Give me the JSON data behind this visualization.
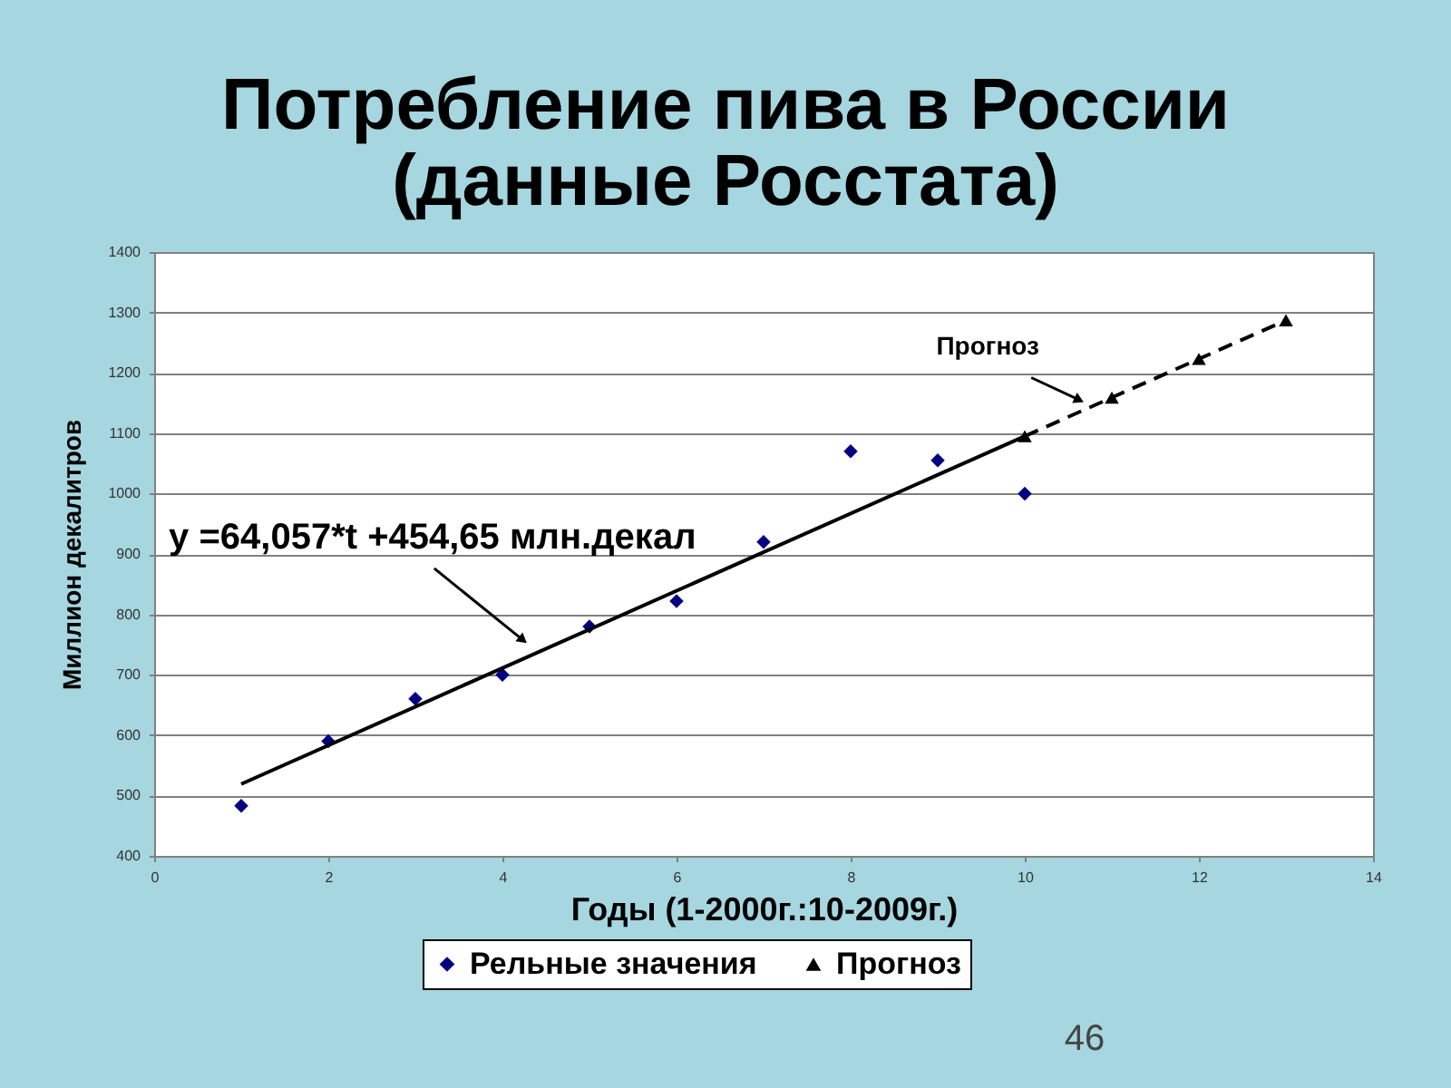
{
  "chart_data": {
    "type": "scatter",
    "title": "Потребление пива в России",
    "subtitle": "(данные Росстата)",
    "xlabel": "Годы (1-2000г.:10-2009г.)",
    "ylabel": "Миллион декалитров",
    "xlim": [
      0,
      14
    ],
    "xticks": [
      0,
      2,
      4,
      6,
      8,
      10,
      12,
      14
    ],
    "ylim": [
      400,
      1400
    ],
    "yticks": [
      400,
      500,
      600,
      700,
      800,
      900,
      1000,
      1100,
      1200,
      1300,
      1400
    ],
    "grid": "y",
    "legend": "bottom",
    "series": [
      {
        "name": "Рельные значения",
        "marker": "diamond",
        "color": "#000080",
        "x": [
          1,
          2,
          3,
          4,
          5,
          6,
          7,
          8,
          9,
          10
        ],
        "values": [
          483,
          590,
          660,
          700,
          780,
          822,
          920,
          1070,
          1055,
          1000
        ]
      },
      {
        "type": "line",
        "color": "#000000",
        "line_style": "solid",
        "x": [
          1,
          10
        ],
        "values": [
          519,
          1095
        ]
      },
      {
        "name": "Прогноз",
        "type": "line",
        "color": "#000000",
        "line_style": "dashed",
        "marker": "triangle",
        "x": [
          10,
          11,
          12,
          13
        ],
        "values": [
          1095,
          1159,
          1223,
          1287
        ]
      }
    ],
    "annotations": [
      {
        "text": "y =64,057*t +454,65 млн.декал",
        "x": 4.3,
        "y": 750
      },
      {
        "text": "Прогноз",
        "x": 10.7,
        "y": 1150
      },
      "46"
    ]
  }
}
